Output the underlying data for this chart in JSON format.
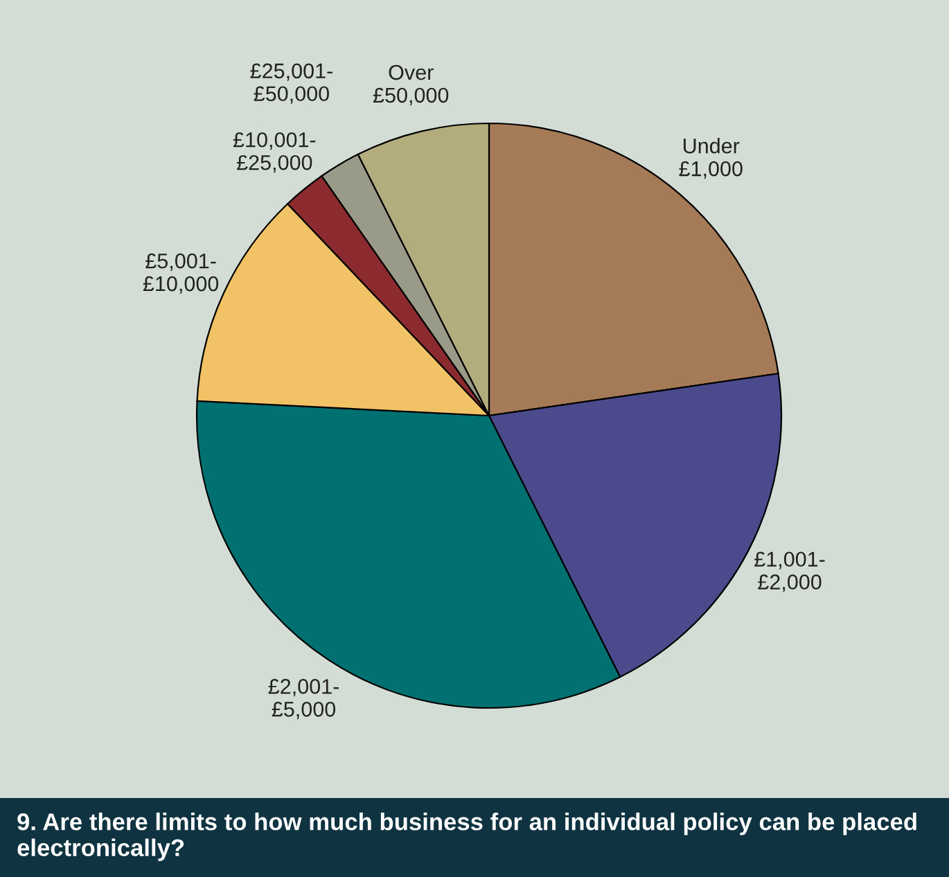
{
  "chart_data": {
    "type": "pie",
    "title": "9. Are there limits to how much business for an individual policy can be placed electronically?",
    "categories": [
      "Under\n£1,000",
      "£1,001-\n£2,000",
      "£2,001-\n£5,000",
      "£5,001-\n£10,000",
      "£10,001-\n£25,000",
      "£25,001-\n£50,000",
      "Over\n£50,000"
    ],
    "values": [
      22.7,
      19.9,
      33.2,
      12.1,
      2.4,
      2.3,
      7.4
    ],
    "colors": [
      "#a57a56",
      "#4a4a8c",
      "#007070",
      "#f2c266",
      "#8b2a2f",
      "#9a9a88",
      "#b3ad7e"
    ],
    "legend": false
  }
}
